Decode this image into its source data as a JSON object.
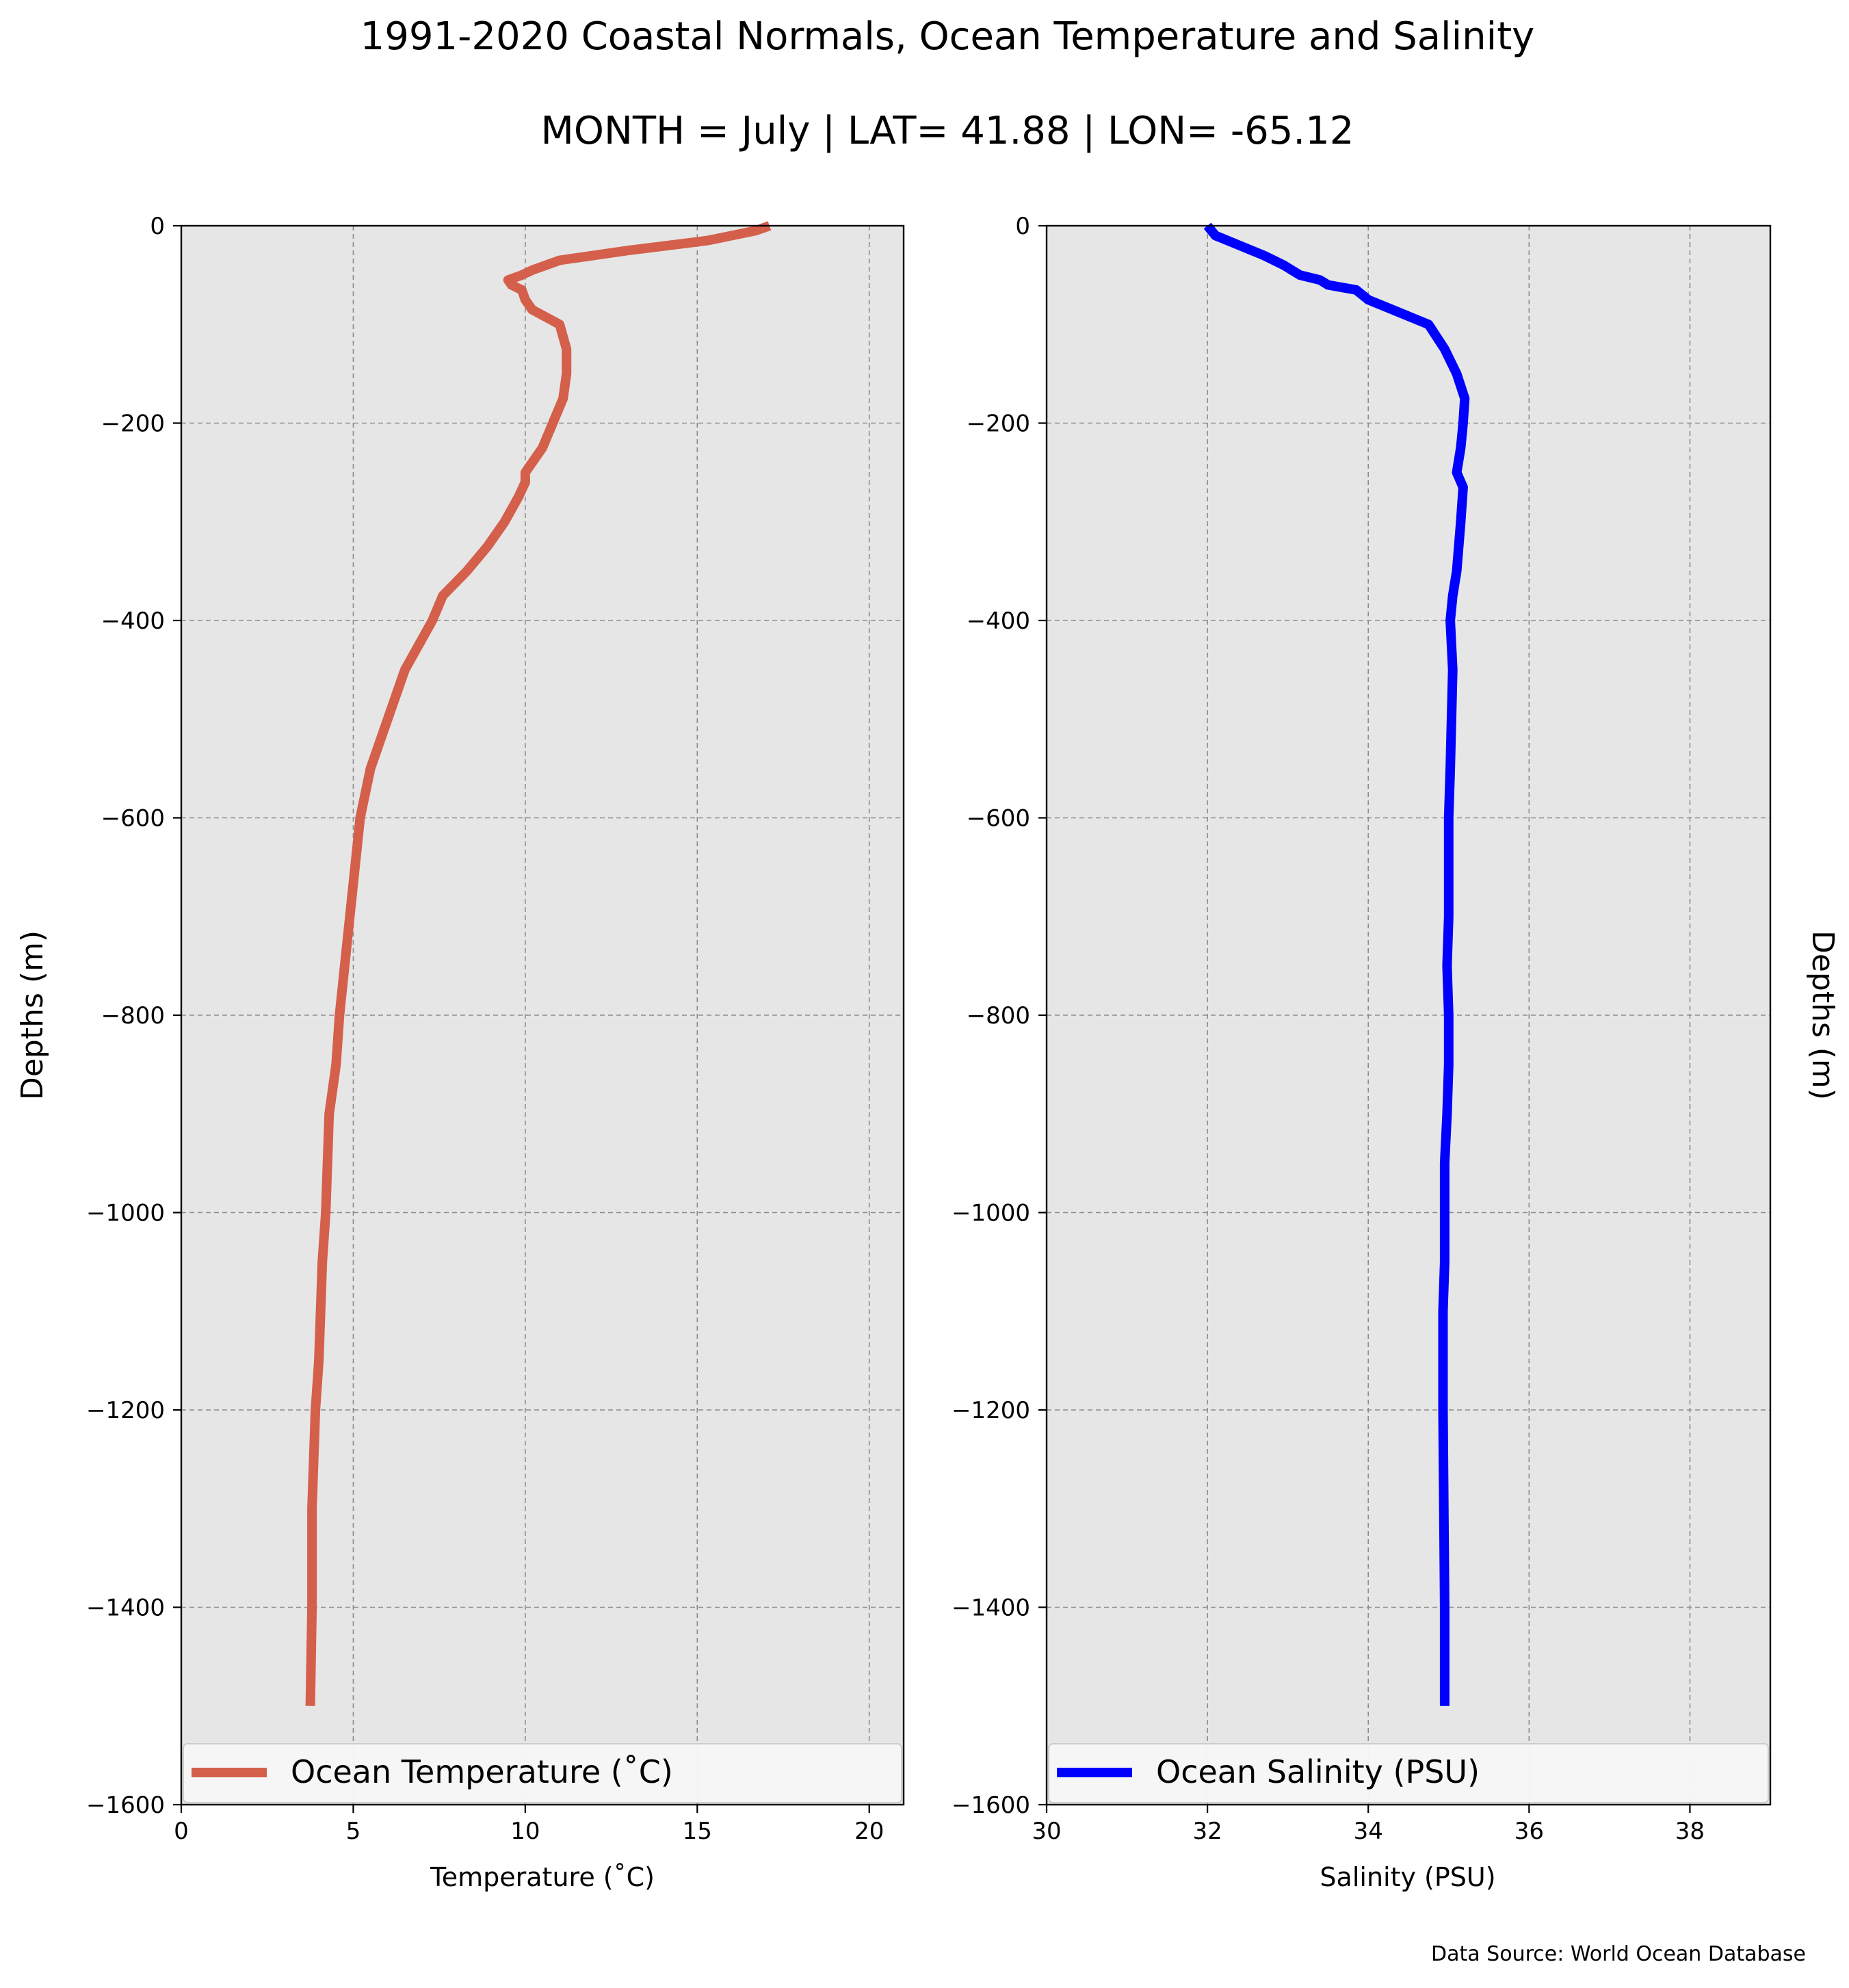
{
  "title": "1991-2020 Coastal Normals, Ocean Temperature and Salinity",
  "subtitle": "MONTH = July | LAT= 41.88 | LON= -65.12",
  "source_note": "Data Source: World Ocean Database",
  "chart_data": [
    {
      "type": "line",
      "xlabel": "Temperature ($^\\circ$C)",
      "xlabel_display": "Temperature (˚C)",
      "ylabel": "Depths (m)",
      "xlim": [
        0,
        21
      ],
      "ylim": [
        -1600,
        0
      ],
      "xticks": [
        0,
        5,
        10,
        15,
        20
      ],
      "yticks": [
        0,
        -200,
        -400,
        -600,
        -800,
        -1000,
        -1200,
        -1400,
        -1600
      ],
      "grid": true,
      "legend_placement": "bottom",
      "series": [
        {
          "name": "Ocean Temperature (˚C)",
          "color": "#d45f4a",
          "x": [
            17.1,
            16.7,
            15.3,
            13.0,
            11.0,
            10.2,
            9.9,
            9.5,
            9.6,
            9.9,
            10.0,
            10.2,
            11.0,
            11.2,
            11.2,
            11.1,
            10.8,
            10.5,
            10.0,
            10.0,
            9.8,
            9.4,
            8.9,
            8.3,
            7.6,
            7.3,
            6.5,
            6.0,
            5.5,
            5.2,
            4.9,
            4.6,
            4.5,
            4.3,
            4.2,
            4.1,
            4.0,
            3.9,
            3.8,
            3.8,
            3.75
          ],
          "y": [
            0,
            -5,
            -15,
            -25,
            -35,
            -45,
            -50,
            -55,
            -60,
            -65,
            -75,
            -85,
            -100,
            -125,
            -150,
            -175,
            -200,
            -225,
            -250,
            -260,
            -275,
            -300,
            -325,
            -350,
            -375,
            -400,
            -450,
            -500,
            -550,
            -600,
            -700,
            -800,
            -850,
            -900,
            -1000,
            -1050,
            -1150,
            -1200,
            -1300,
            -1400,
            -1500
          ]
        }
      ]
    },
    {
      "type": "line",
      "xlabel": "Salinity (PSU)",
      "ylabel": "Depths (m)",
      "xlim": [
        30,
        39
      ],
      "ylim": [
        -1600,
        0
      ],
      "xticks": [
        30,
        32,
        34,
        36,
        38
      ],
      "yticks": [
        0,
        -200,
        -400,
        -600,
        -800,
        -1000,
        -1200,
        -1400,
        -1600
      ],
      "grid": true,
      "legend_placement": "bottom",
      "series": [
        {
          "name": "Ocean Salinity (PSU)",
          "color": "#0000ff",
          "x": [
            32.0,
            32.1,
            32.4,
            32.7,
            32.95,
            33.15,
            33.4,
            33.5,
            33.85,
            34.0,
            34.3,
            34.75,
            34.95,
            35.1,
            35.2,
            35.18,
            35.15,
            35.1,
            35.18,
            35.15,
            35.1,
            35.05,
            35.02,
            35.05,
            35.02,
            35.0,
            35.0,
            34.98,
            35.0,
            35.0,
            34.98,
            34.95,
            34.95,
            34.95,
            34.93,
            34.93,
            34.95,
            34.95
          ],
          "y": [
            0,
            -10,
            -20,
            -30,
            -40,
            -50,
            -55,
            -60,
            -65,
            -75,
            -85,
            -100,
            -125,
            -150,
            -175,
            -200,
            -225,
            -250,
            -265,
            -300,
            -350,
            -375,
            -400,
            -450,
            -550,
            -600,
            -700,
            -750,
            -800,
            -850,
            -900,
            -950,
            -1000,
            -1050,
            -1100,
            -1200,
            -1400,
            -1500
          ]
        }
      ],
      "right_ylabel": "Depths (m)"
    }
  ]
}
